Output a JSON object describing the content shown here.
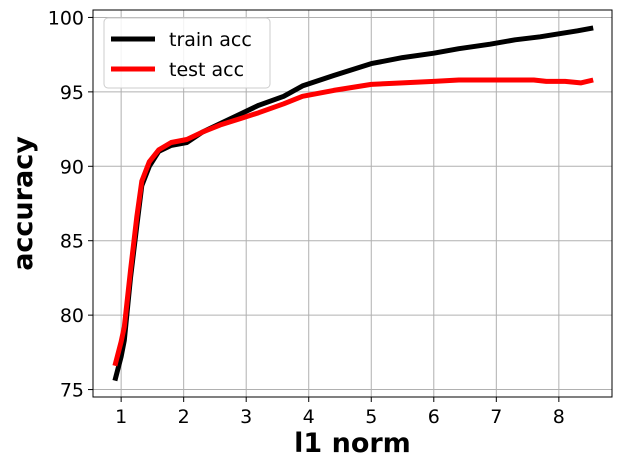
{
  "chart_data": {
    "type": "line",
    "title": "",
    "xlabel": "l1 norm",
    "ylabel": "accuracy",
    "xlim": [
      0.55,
      8.85
    ],
    "ylim": [
      74.5,
      100.5
    ],
    "grid": true,
    "legend_position": "top-left",
    "x_ticks": [
      1,
      2,
      3,
      4,
      5,
      6,
      7,
      8
    ],
    "y_ticks": [
      75,
      80,
      85,
      90,
      95,
      100
    ],
    "series": [
      {
        "name": "train acc",
        "color": "#000000",
        "points": [
          [
            0.9,
            75.6
          ],
          [
            1.0,
            77.2
          ],
          [
            1.05,
            78.3
          ],
          [
            1.15,
            82.5
          ],
          [
            1.25,
            86.0
          ],
          [
            1.33,
            88.7
          ],
          [
            1.45,
            90.0
          ],
          [
            1.6,
            91.0
          ],
          [
            1.8,
            91.4
          ],
          [
            2.05,
            91.6
          ],
          [
            2.3,
            92.3
          ],
          [
            2.6,
            92.9
          ],
          [
            2.9,
            93.5
          ],
          [
            3.2,
            94.1
          ],
          [
            3.6,
            94.7
          ],
          [
            3.9,
            95.4
          ],
          [
            4.4,
            96.1
          ],
          [
            5.0,
            96.9
          ],
          [
            5.5,
            97.3
          ],
          [
            6.0,
            97.6
          ],
          [
            6.4,
            97.9
          ],
          [
            6.9,
            98.2
          ],
          [
            7.3,
            98.5
          ],
          [
            7.7,
            98.7
          ],
          [
            8.0,
            98.9
          ],
          [
            8.3,
            99.1
          ],
          [
            8.55,
            99.3
          ]
        ]
      },
      {
        "name": "test acc",
        "color": "#ff0000",
        "points": [
          [
            0.9,
            76.6
          ],
          [
            1.0,
            78.2
          ],
          [
            1.05,
            79.2
          ],
          [
            1.15,
            83.0
          ],
          [
            1.25,
            86.6
          ],
          [
            1.33,
            89.0
          ],
          [
            1.45,
            90.3
          ],
          [
            1.6,
            91.1
          ],
          [
            1.8,
            91.6
          ],
          [
            2.05,
            91.8
          ],
          [
            2.3,
            92.3
          ],
          [
            2.6,
            92.8
          ],
          [
            2.9,
            93.2
          ],
          [
            3.2,
            93.6
          ],
          [
            3.6,
            94.2
          ],
          [
            3.9,
            94.7
          ],
          [
            4.4,
            95.1
          ],
          [
            5.0,
            95.5
          ],
          [
            5.5,
            95.6
          ],
          [
            6.0,
            95.7
          ],
          [
            6.4,
            95.8
          ],
          [
            6.9,
            95.8
          ],
          [
            7.3,
            95.8
          ],
          [
            7.6,
            95.8
          ],
          [
            7.8,
            95.7
          ],
          [
            8.1,
            95.7
          ],
          [
            8.35,
            95.6
          ],
          [
            8.55,
            95.8
          ]
        ]
      }
    ]
  }
}
